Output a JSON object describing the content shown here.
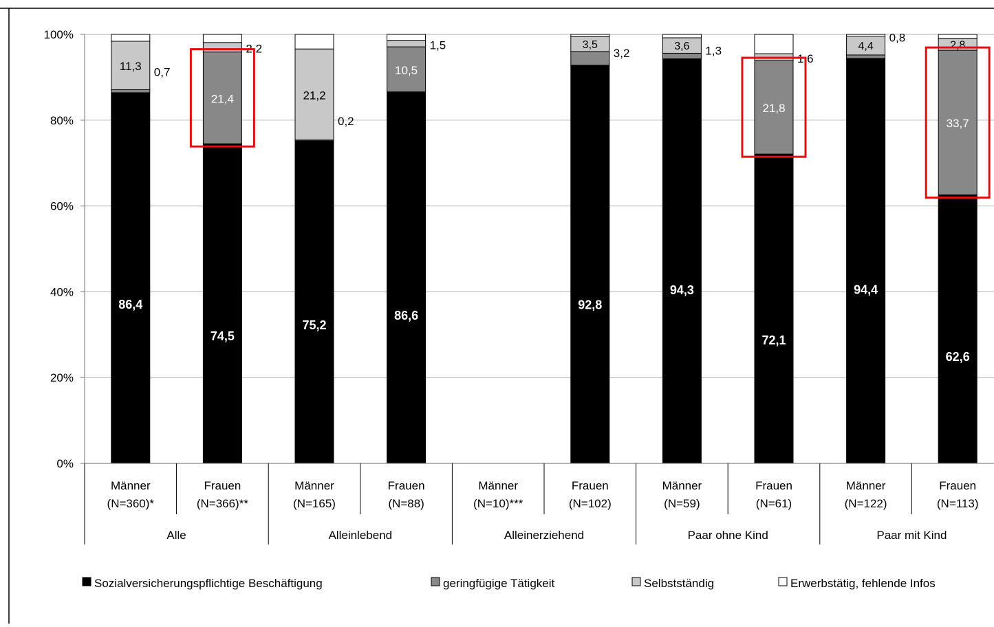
{
  "chart_data": {
    "type": "bar",
    "stacked": true,
    "ylim": [
      0,
      100
    ],
    "yticks": [
      "0%",
      "20%",
      "40%",
      "60%",
      "80%",
      "100%"
    ],
    "grid": true,
    "legend_position": "bottom",
    "groups": [
      "Alle",
      "Alleinlebend",
      "Alleinerziehend",
      "Paar ohne Kind",
      "Paar mit Kind"
    ],
    "categories": [
      {
        "line1": "Männer",
        "line2": "(N=360)*",
        "group": 0
      },
      {
        "line1": "Frauen",
        "line2": "(N=366)**",
        "group": 0
      },
      {
        "line1": "Männer",
        "line2": "(N=165)",
        "group": 1
      },
      {
        "line1": "Frauen",
        "line2": "(N=88)",
        "group": 1
      },
      {
        "line1": "Männer",
        "line2": "(N=10)***",
        "group": 2
      },
      {
        "line1": "Frauen",
        "line2": "(N=102)",
        "group": 2
      },
      {
        "line1": "Männer",
        "line2": "(N=59)",
        "group": 3
      },
      {
        "line1": "Frauen",
        "line2": "(N=61)",
        "group": 3
      },
      {
        "line1": "Männer",
        "line2": "(N=122)",
        "group": 4
      },
      {
        "line1": "Frauen",
        "line2": "(N=113)",
        "group": 4
      }
    ],
    "series": [
      {
        "name": "Sozialversicherungspflichtige Beschäftigung",
        "color": "#000000",
        "values": [
          86.4,
          74.5,
          75.2,
          86.6,
          null,
          92.8,
          94.3,
          72.1,
          94.4,
          62.6
        ],
        "labels": [
          "86,4",
          "74,5",
          "75,2",
          "86,6",
          "",
          "92,8",
          "94,3",
          "72,1",
          "94,4",
          "62,6"
        ]
      },
      {
        "name": "geringfügige Tätigkeit",
        "color": "#888888",
        "values": [
          0.7,
          21.4,
          0.2,
          10.5,
          null,
          3.2,
          1.3,
          21.8,
          0.8,
          33.7
        ],
        "labels": [
          "0,7",
          "21,4",
          "0,2",
          "10,5",
          "",
          "3,2",
          "1,3",
          "21,8",
          "0,8",
          "33,7"
        ]
      },
      {
        "name": "Selbstständig",
        "color": "#c8c8c8",
        "values": [
          11.3,
          2.2,
          21.2,
          1.5,
          null,
          3.5,
          3.6,
          1.6,
          4.4,
          2.8
        ],
        "labels": [
          "11,3",
          "2,2",
          "21,2",
          "1,5",
          "",
          "3,5",
          "3,6",
          "1,6",
          "4,4",
          "2,8"
        ]
      },
      {
        "name": "Erwerbstätig, fehlende Infos",
        "color": "#ffffff",
        "values": [
          1.6,
          1.9,
          3.4,
          1.4,
          null,
          0.5,
          0.8,
          4.5,
          0.4,
          0.9
        ],
        "labels": [
          "",
          "",
          "",
          "",
          "",
          "",
          "",
          "",
          "",
          ""
        ]
      }
    ],
    "highlighted_segments": [
      {
        "category": 1,
        "series": 1
      },
      {
        "category": 7,
        "series": 1
      },
      {
        "category": 9,
        "series": 1
      }
    ],
    "highlight_color": "#e01010"
  }
}
